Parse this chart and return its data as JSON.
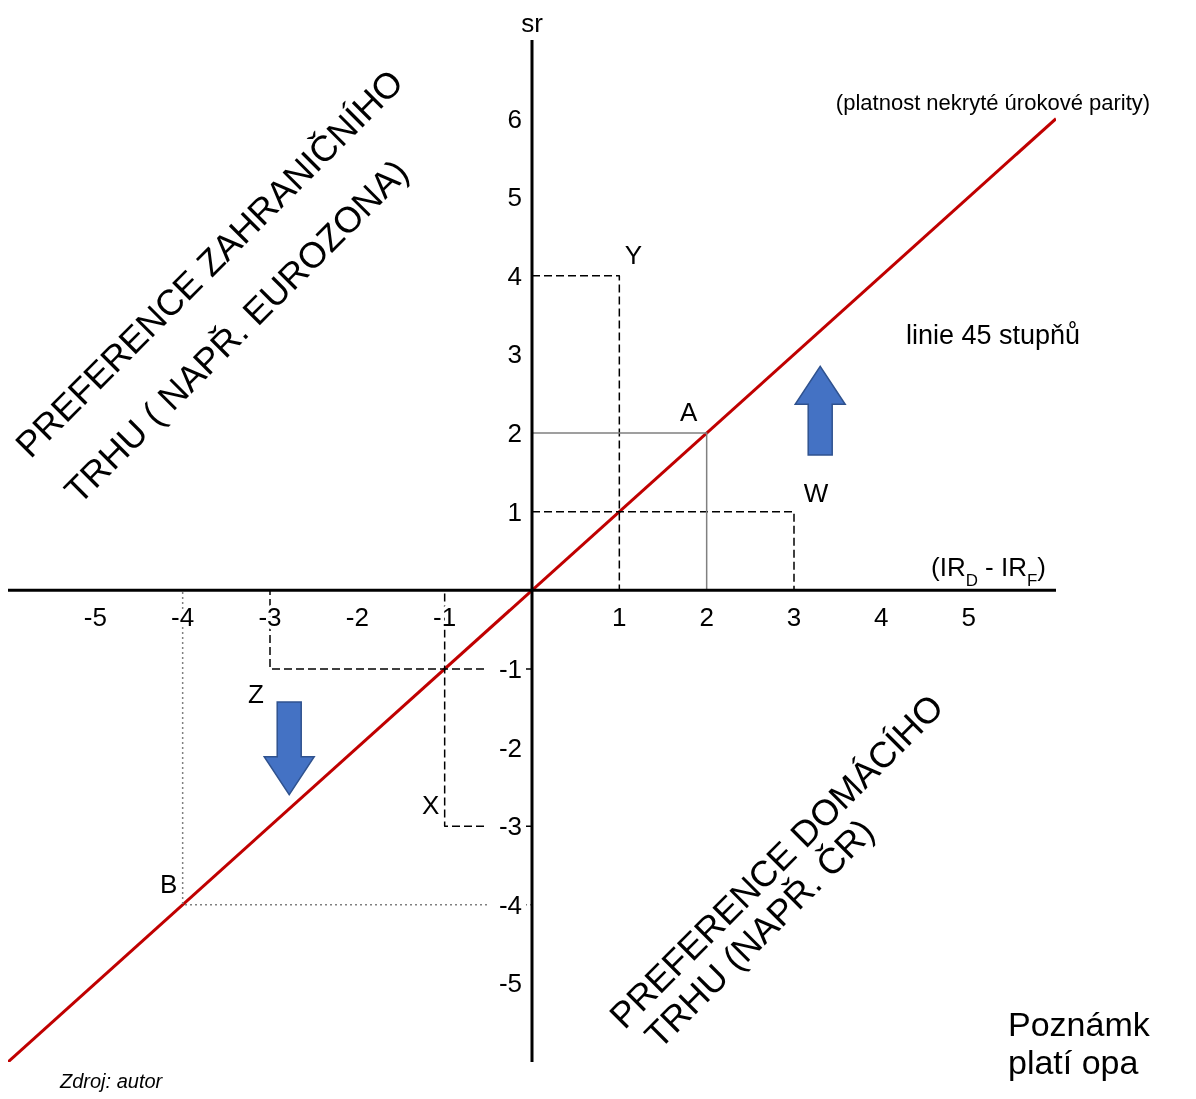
{
  "chart_data": {
    "type": "line",
    "xlabel": "(IR$_{D}$ - IR$_{F}$)",
    "ylabel": "sr",
    "xlim": [
      -6,
      6
    ],
    "ylim": [
      -6,
      7
    ],
    "xticks": [
      -5,
      -4,
      -3,
      -2,
      -1,
      1,
      2,
      3,
      4,
      5
    ],
    "yticks": [
      -5,
      -4,
      -3,
      -2,
      -1,
      1,
      2,
      3,
      4,
      5,
      6
    ],
    "marker": "none",
    "series": [
      {
        "color": "#c00000",
        "line_style": "solid",
        "x": [
          -6,
          6
        ],
        "values": [
          -6,
          6
        ]
      },
      {
        "color": "#000000",
        "line_style": "dashed",
        "x": [
          0,
          1,
          1
        ],
        "values": [
          4,
          4,
          0
        ]
      },
      {
        "color": "#000000",
        "line_style": "dashed",
        "x": [
          0,
          3,
          3
        ],
        "values": [
          1,
          1,
          0
        ]
      },
      {
        "color": "#808080",
        "line_style": "solid",
        "x": [
          0,
          2,
          2
        ],
        "values": [
          2,
          2,
          0
        ]
      },
      {
        "color": "#000000",
        "line_style": "dashed",
        "x": [
          0,
          -1,
          -1
        ],
        "values": [
          -3,
          -3,
          0
        ]
      },
      {
        "color": "#000000",
        "line_style": "dashed",
        "x": [
          0,
          -3,
          -3
        ],
        "values": [
          -1,
          -1,
          0
        ]
      },
      {
        "color": "#808080",
        "line_style": "dotted",
        "x": [
          0,
          -4,
          -4
        ],
        "values": [
          -4,
          -4,
          0
        ]
      }
    ],
    "annotations": [
      "PREFERENCE ZAHRANIČNÍHO",
      "TRHU ( NAPŘ. EUROZONA)",
      "PREFERENCE DOMÁCÍHO",
      "TRHU (NAPŘ. ČR)",
      "(platnost nekryté úrokové parity)",
      "linie 45 stupňů",
      "Zdroj: autor",
      "Poznámk",
      "platí opa",
      {
        "text": "A",
        "x": 2,
        "y": 2
      },
      {
        "text": "W",
        "x": 3,
        "y": 1
      },
      {
        "text": "Y",
        "x": 1,
        "y": 4
      },
      {
        "text": "X",
        "x": -1,
        "y": -3
      },
      {
        "text": "Z",
        "x": -3,
        "y": -1
      },
      {
        "text": "B",
        "x": -4,
        "y": -4
      }
    ]
  }
}
